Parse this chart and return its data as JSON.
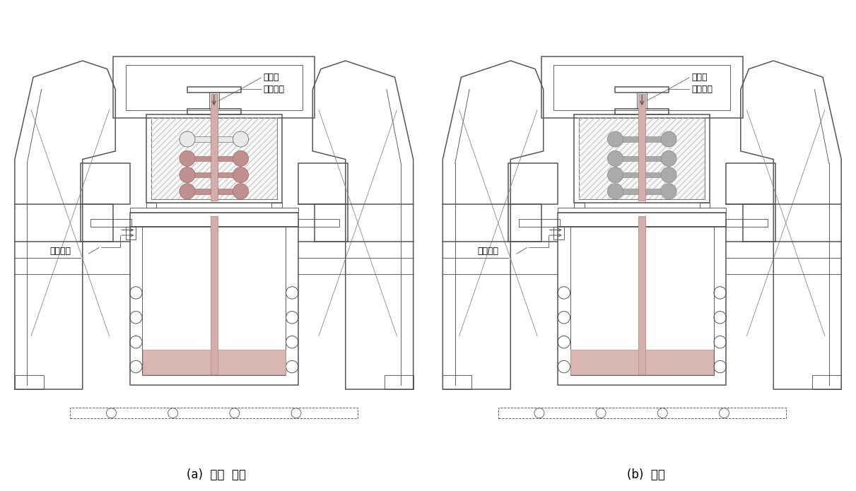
{
  "bg_color": "#ffffff",
  "lc": "#555555",
  "lc_thin": "#888888",
  "pink": "#c09090",
  "light_pink": "#d4aeaa",
  "gray_node": "#aaaaaa",
  "gray_node_edge": "#888888",
  "label_a": "(a)  용탕  충전",
  "label_b": "(b)  응고",
  "text_yuya": "液压杆",
  "text_kaz": "卡紧铸型",
  "text_inert": "惰性气体",
  "font_label": 12,
  "font_cn": 9
}
